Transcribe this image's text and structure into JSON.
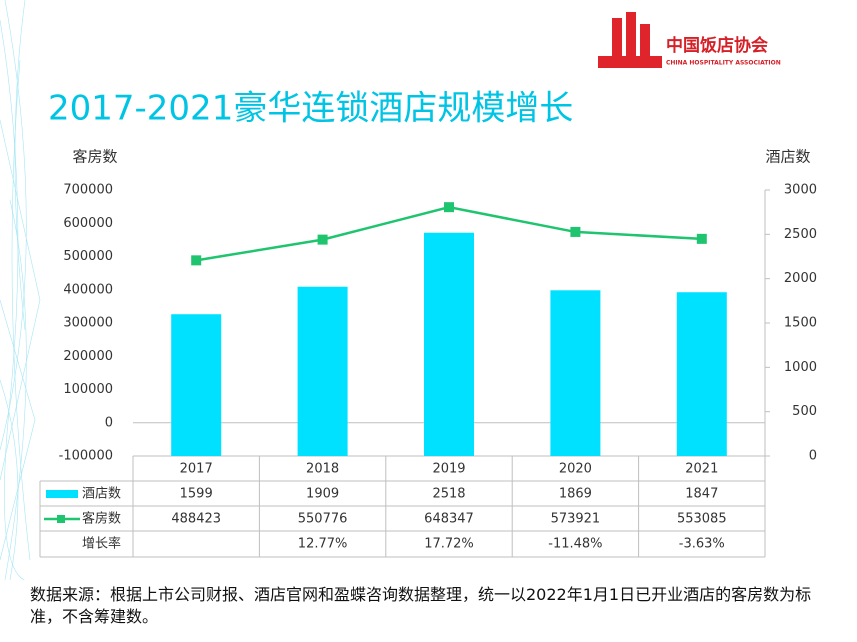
{
  "header": {
    "org_cn": "中国饭店协会",
    "org_en": "CHINA HOSPITALITY ASSOCIATION"
  },
  "chart_data": {
    "type": "bar-line",
    "title": "2017-2021豪华连锁酒店规模增长",
    "y_label": "客房数",
    "y2_label": "酒店数",
    "categories": [
      "2017",
      "2018",
      "2019",
      "2020",
      "2021"
    ],
    "series": [
      {
        "name": "酒店数",
        "type": "bar",
        "axis": "y2",
        "color": "#00e1ff",
        "values": [
          1599,
          1909,
          2518,
          1869,
          1847
        ]
      },
      {
        "name": "客房数",
        "type": "line",
        "axis": "y",
        "color": "#1ec46e",
        "values": [
          488423,
          550776,
          648347,
          573921,
          553085
        ]
      }
    ],
    "growth_rate": {
      "name": "增长率",
      "values": [
        null,
        12.77,
        17.72,
        -11.48,
        -3.63
      ],
      "value_labels": [
        null,
        "12.77%",
        "17.72%",
        "-11.48%",
        "-3.63%"
      ]
    },
    "ylim": [
      -100000,
      700000
    ],
    "yticks": [
      -100000,
      0,
      100000,
      200000,
      300000,
      400000,
      500000,
      600000,
      700000
    ],
    "y2lim": [
      0,
      3000
    ],
    "y2ticks": [
      0,
      500,
      1000,
      1500,
      2000,
      2500,
      3000
    ]
  },
  "source_note": "数据来源：根据上市公司财报、酒店官网和盈蝶咨询数据整理，统一以2022年1月1日已开业酒店的客房数为标准，不含筹建数。"
}
